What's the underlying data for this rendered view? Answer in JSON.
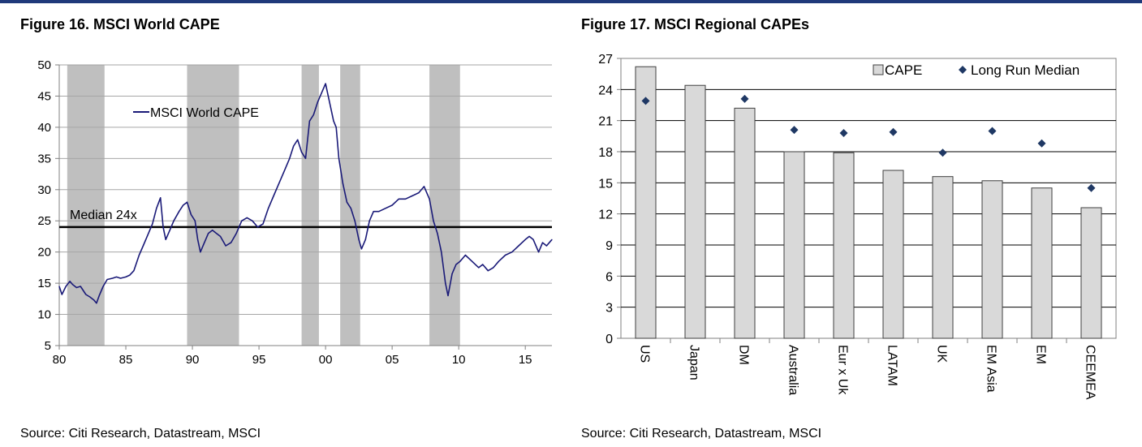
{
  "page": {
    "accent_color": "#1f3a7a"
  },
  "figure16": {
    "title": "Figure 16. MSCI World CAPE",
    "source": "Source: Citi Research, Datastream, MSCI",
    "median_label": "Median 24x",
    "chart_data": {
      "type": "line",
      "title": "Figure 16. MSCI World CAPE",
      "xlabel": "",
      "ylabel": "",
      "x_ticks": [
        1980,
        1985,
        1990,
        1995,
        2000,
        2005,
        2010,
        2015
      ],
      "x_tick_labels": [
        "80",
        "85",
        "90",
        "95",
        "00",
        "05",
        "10",
        "15"
      ],
      "xlim": [
        1980,
        2017
      ],
      "ylim": [
        5,
        50
      ],
      "y_ticks": [
        5,
        10,
        15,
        20,
        25,
        30,
        35,
        40,
        45,
        50
      ],
      "grid": true,
      "legend": "upper-left",
      "median_value": 24,
      "line_color": "#1a1a78",
      "shade_color": "#bfbfbf",
      "recession_bands": [
        [
          1980.6,
          1983.4
        ],
        [
          1989.6,
          1993.5
        ],
        [
          1998.2,
          1999.5
        ],
        [
          2001.1,
          2002.6
        ],
        [
          2007.8,
          2010.1
        ]
      ],
      "series": [
        {
          "name": "MSCI World CAPE",
          "x": [
            1980.0,
            1980.2,
            1980.5,
            1980.8,
            1981.0,
            1981.3,
            1981.6,
            1982.0,
            1982.3,
            1982.6,
            1982.8,
            1983.0,
            1983.3,
            1983.6,
            1984.0,
            1984.3,
            1984.6,
            1985.0,
            1985.3,
            1985.6,
            1986.0,
            1986.3,
            1986.6,
            1987.0,
            1987.3,
            1987.6,
            1987.8,
            1988.0,
            1988.3,
            1988.6,
            1989.0,
            1989.3,
            1989.6,
            1989.9,
            1990.2,
            1990.4,
            1990.6,
            1990.9,
            1991.2,
            1991.5,
            1991.8,
            1992.1,
            1992.5,
            1992.9,
            1993.3,
            1993.7,
            1994.1,
            1994.5,
            1994.9,
            1995.3,
            1995.7,
            1996.1,
            1996.5,
            1996.9,
            1997.3,
            1997.6,
            1997.9,
            1998.2,
            1998.5,
            1998.8,
            1999.1,
            1999.4,
            1999.7,
            2000.0,
            2000.2,
            2000.4,
            2000.6,
            2000.8,
            2001.0,
            2001.3,
            2001.6,
            2001.9,
            2002.2,
            2002.5,
            2002.7,
            2003.0,
            2003.3,
            2003.6,
            2004.0,
            2004.5,
            2005.0,
            2005.5,
            2006.0,
            2006.5,
            2007.0,
            2007.4,
            2007.8,
            2008.1,
            2008.4,
            2008.7,
            2009.0,
            2009.2,
            2009.5,
            2009.8,
            2010.1,
            2010.5,
            2011.0,
            2011.5,
            2011.8,
            2012.2,
            2012.6,
            2013.0,
            2013.5,
            2014.0,
            2014.5,
            2015.0,
            2015.3,
            2015.6,
            2016.0,
            2016.3,
            2016.6,
            2017.0
          ],
          "values": [
            14.5,
            13.2,
            14.5,
            15.3,
            14.8,
            14.3,
            14.5,
            13.2,
            12.8,
            12.3,
            11.8,
            13.0,
            14.5,
            15.6,
            15.8,
            16.0,
            15.8,
            16.0,
            16.3,
            17.0,
            19.5,
            21.0,
            22.5,
            24.5,
            27.0,
            28.7,
            24.0,
            22.0,
            23.5,
            25.0,
            26.5,
            27.5,
            28.0,
            26.0,
            25.0,
            22.0,
            20.0,
            21.5,
            23.0,
            23.5,
            23.0,
            22.5,
            21.0,
            21.5,
            23.0,
            25.0,
            25.5,
            25.0,
            24.0,
            24.5,
            27.0,
            29.0,
            31.0,
            33.0,
            35.0,
            37.0,
            38.0,
            36.0,
            35.0,
            41.0,
            42.0,
            44.0,
            45.5,
            47.0,
            45.0,
            43.0,
            41.0,
            40.0,
            35.0,
            31.0,
            28.0,
            27.0,
            25.0,
            22.0,
            20.5,
            22.0,
            25.0,
            26.5,
            26.5,
            27.0,
            27.5,
            28.5,
            28.5,
            29.0,
            29.5,
            30.5,
            28.5,
            25.0,
            23.0,
            20.0,
            15.0,
            13.0,
            16.5,
            18.0,
            18.5,
            19.5,
            18.5,
            17.5,
            18.0,
            17.0,
            17.5,
            18.5,
            19.5,
            20.0,
            21.0,
            22.0,
            22.5,
            22.0,
            20.0,
            21.5,
            21.0,
            22.0
          ]
        }
      ]
    }
  },
  "figure17": {
    "title": "Figure 17. MSCI Regional CAPEs",
    "source": "Source: Citi Research, Datastream, MSCI",
    "chart_data": {
      "type": "bar",
      "title": "Figure 17. MSCI Regional CAPEs",
      "xlabel": "",
      "ylabel": "",
      "categories": [
        "US",
        "Japan",
        "DM",
        "Australia",
        "Eur x Uk",
        "LATAM",
        "UK",
        "EM Asia",
        "EM",
        "CEEMEA"
      ],
      "ylim": [
        0,
        27
      ],
      "y_ticks": [
        0,
        3,
        6,
        9,
        12,
        15,
        18,
        21,
        24,
        27
      ],
      "grid": true,
      "legend": "top-right",
      "bar_color": "#d9d9d9",
      "marker_color": "#1f3864",
      "series": [
        {
          "name": "CAPE",
          "values": [
            26.2,
            24.4,
            22.2,
            18.0,
            17.9,
            16.2,
            15.6,
            15.2,
            14.5,
            12.6
          ]
        },
        {
          "name": "Long Run Median",
          "values": [
            22.9,
            null,
            23.1,
            20.1,
            19.8,
            19.9,
            17.9,
            20.0,
            18.8,
            14.5
          ]
        }
      ]
    }
  }
}
